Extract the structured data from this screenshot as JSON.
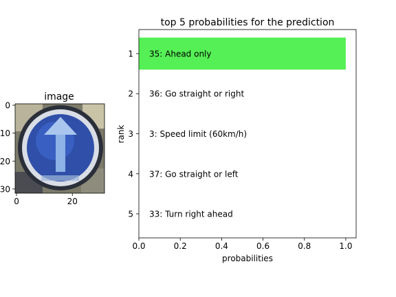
{
  "image_panel": {
    "title": "image",
    "xticks": [
      0,
      20
    ],
    "yticks": [
      0,
      10,
      20,
      30
    ],
    "icon": "ahead-only-sign-icon"
  },
  "chart_data": {
    "type": "bar",
    "orientation": "horizontal",
    "title": "top 5 probabilities for the prediction",
    "xlabel": "probabilities",
    "ylabel": "rank",
    "xlim": [
      0.0,
      1.05
    ],
    "ylim": [
      5.6,
      0.4
    ],
    "xticks": [
      "0.0",
      "0.2",
      "0.4",
      "0.6",
      "0.8",
      "1.0"
    ],
    "ranks": [
      1,
      2,
      3,
      4,
      5
    ],
    "labels": [
      "35: Ahead only",
      "36: Go straight or right",
      "3: Speed limit (60km/h)",
      "37: Go straight or left",
      "33: Turn right ahead"
    ],
    "values": [
      1.0,
      0.0,
      0.0,
      0.0,
      0.0
    ],
    "bar_color": "#55f055",
    "grid": false
  }
}
